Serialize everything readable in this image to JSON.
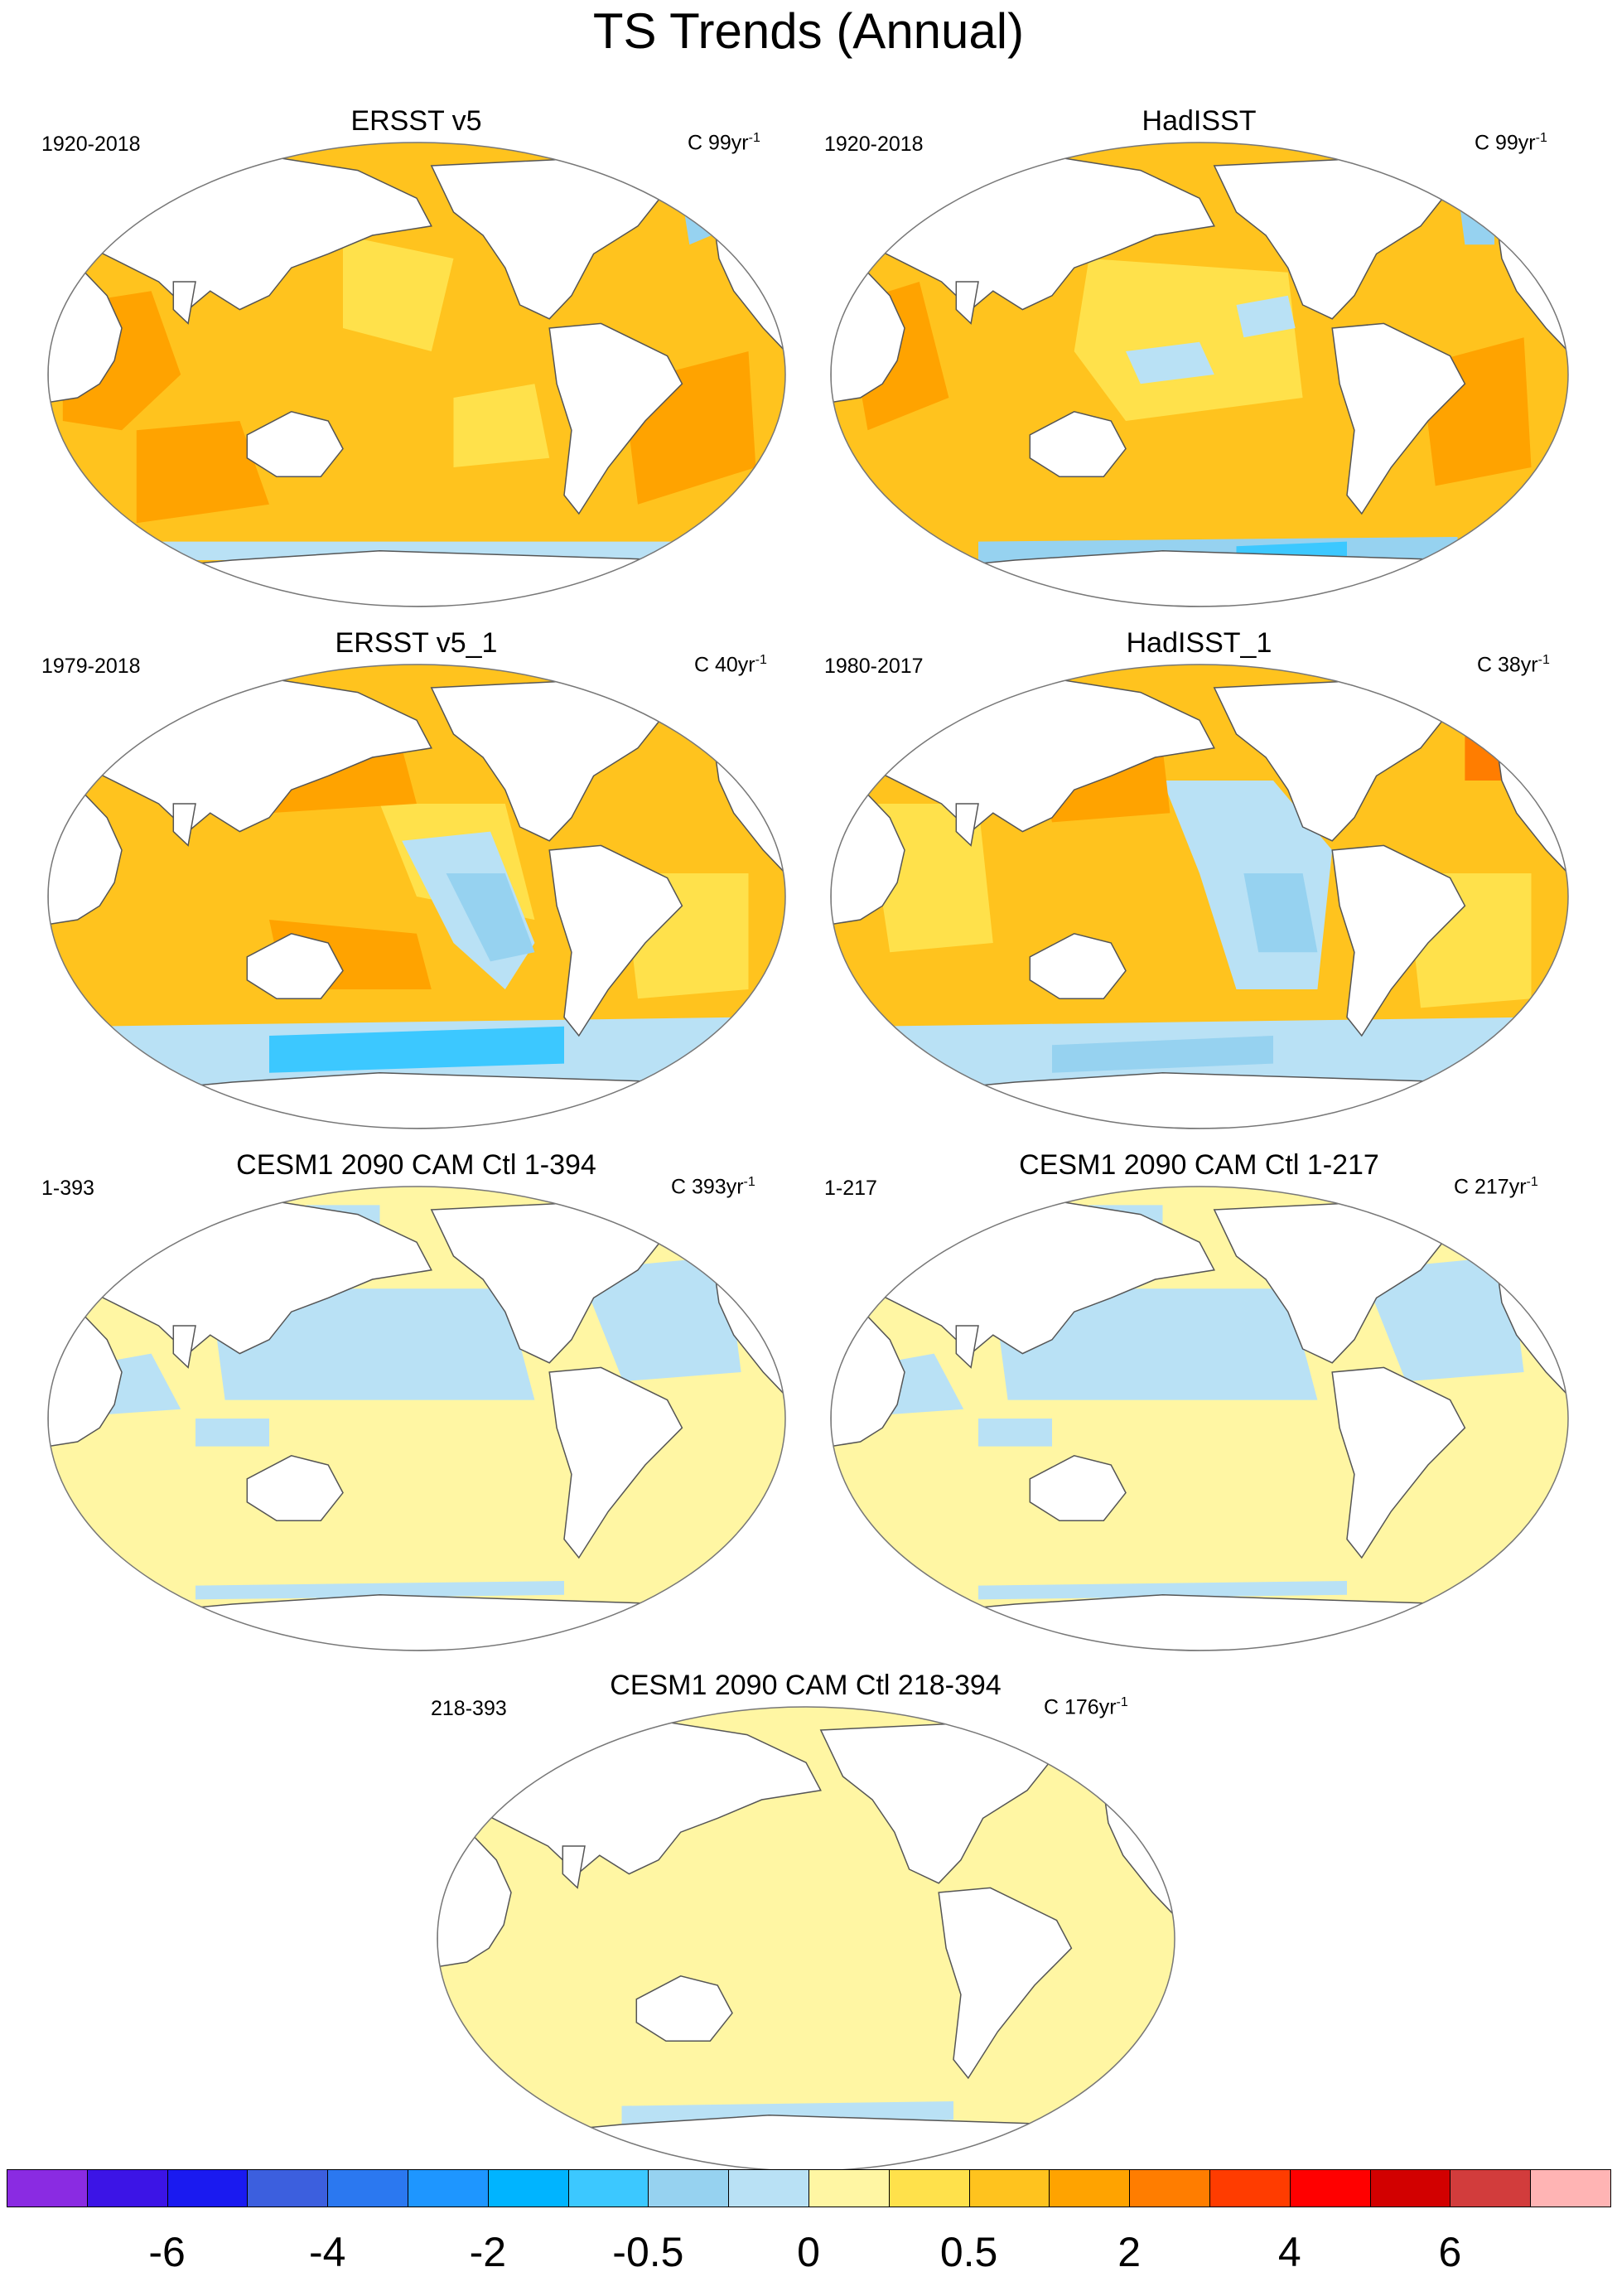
{
  "figure": {
    "title": "TS Trends (Annual)"
  },
  "panels": [
    {
      "title": "ERSST v5",
      "period": "1920-2018",
      "units_prefix": "C",
      "units_cycles": "99yr",
      "units_exp": "-1",
      "scheme": "observed-warm"
    },
    {
      "title": "HadISST",
      "period": "1920-2018",
      "units_prefix": "C",
      "units_cycles": "99yr",
      "units_exp": "-1",
      "scheme": "observed-mixed"
    },
    {
      "title": "ERSST v5_1",
      "period": "1979-2018",
      "units_prefix": "C",
      "units_cycles": "40yr",
      "units_exp": "-1",
      "scheme": "recent-cool-south"
    },
    {
      "title": "HadISST_1",
      "period": "1980-2017",
      "units_prefix": "C",
      "units_cycles": "38yr",
      "units_exp": "-1",
      "scheme": "recent-cool-east-pacific"
    },
    {
      "title": "CESM1 2090 CAM Ctl 1-394",
      "period": "1-393",
      "units_prefix": "C",
      "units_cycles": "393yr",
      "units_exp": "-1",
      "scheme": "control-north-cool"
    },
    {
      "title": "CESM1 2090 CAM Ctl 1-217",
      "period": "1-217",
      "units_prefix": "C",
      "units_cycles": "217yr",
      "units_exp": "-1",
      "scheme": "control-north-cool"
    },
    {
      "title": "CESM1 2090 CAM Ctl 218-394",
      "period": "218-393",
      "units_prefix": "C",
      "units_cycles": "176yr",
      "units_exp": "-1",
      "scheme": "control-neutral"
    }
  ],
  "colorbar": {
    "colors": [
      "#8a2be2",
      "#3c14e6",
      "#1a1af0",
      "#3c5fde",
      "#2b78f0",
      "#1e96ff",
      "#00b4ff",
      "#3cc8ff",
      "#96d2f0",
      "#b9e1f5",
      "#fff6a3",
      "#ffe14b",
      "#ffc31e",
      "#ffa300",
      "#ff7d00",
      "#ff3c00",
      "#ff0000",
      "#d20000",
      "#d23c3c",
      "#ffb4b4"
    ],
    "labels": [
      "-6",
      "-4",
      "-2",
      "-0.5",
      "0",
      "0.5",
      "2",
      "4",
      "6"
    ],
    "label_after_box": [
      1,
      3,
      5,
      7,
      9,
      11,
      13,
      15,
      17
    ]
  },
  "palette": {
    "land": "#ffffff",
    "coast": "#555555",
    "very_light_yellow": "#fff6a3",
    "yellow": "#ffe14b",
    "orange_light": "#ffc31e",
    "orange": "#ffa300",
    "orange_dark": "#ff7d00",
    "light_blue": "#b9e1f5",
    "blue": "#96d2f0",
    "blue_mid": "#3cc8ff"
  }
}
